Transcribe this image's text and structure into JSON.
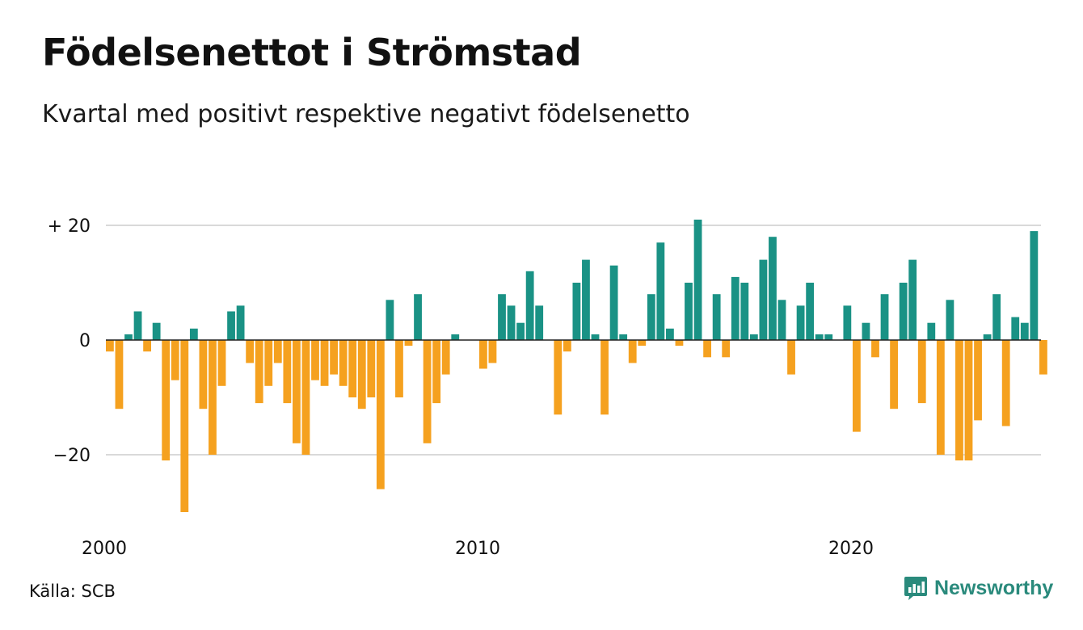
{
  "header": {
    "title": "Födelsenettot i Strömstad",
    "subtitle": "Kvartal med positivt respektive negativt födelsenetto"
  },
  "footer": {
    "source": "Källa: SCB",
    "brand": "Newsworthy",
    "brand_icon": "chart-bubble-icon"
  },
  "colors": {
    "positive": "#1a9285",
    "negative": "#f5a11f",
    "grid": "#d9d9d9",
    "axis": "#222222",
    "brand": "#2a8a7c"
  },
  "chart_data": {
    "type": "bar",
    "title": "Födelsenettot i Strömstad",
    "subtitle": "Kvartal med positivt respektive negativt födelsenetto",
    "xlabel": "",
    "ylabel": "",
    "x_start": "2000 Q1",
    "ylim": [
      -30,
      22
    ],
    "y_ticks": [
      {
        "value": 20,
        "label": "+ 20"
      },
      {
        "value": 0,
        "label": "0"
      },
      {
        "value": -20,
        "label": "−20"
      }
    ],
    "x_ticks": [
      {
        "label": "2000",
        "quarter_index": 0
      },
      {
        "label": "2010",
        "quarter_index": 40
      },
      {
        "label": "2020",
        "quarter_index": 80
      }
    ],
    "grid": true,
    "values": [
      -2,
      -12,
      1,
      5,
      -2,
      3,
      -21,
      -7,
      -30,
      2,
      -12,
      -20,
      -8,
      5,
      6,
      -4,
      -11,
      -8,
      -4,
      -11,
      -18,
      -20,
      -7,
      -8,
      -6,
      -8,
      -10,
      -12,
      -10,
      -26,
      7,
      -10,
      -1,
      8,
      -18,
      -11,
      -6,
      1,
      0,
      0,
      -5,
      -4,
      8,
      6,
      3,
      12,
      6,
      0,
      -13,
      -2,
      10,
      14,
      1,
      -13,
      13,
      1,
      -4,
      -1,
      8,
      17,
      2,
      -1,
      10,
      21,
      -3,
      8,
      -3,
      11,
      10,
      1,
      14,
      18,
      7,
      -6,
      6,
      10,
      1,
      1,
      0,
      6,
      -16,
      3,
      -3,
      8,
      -12,
      10,
      14,
      -11,
      3,
      -20,
      7,
      -21,
      -21,
      -14,
      1,
      8,
      -15,
      4,
      3,
      19,
      -6
    ]
  }
}
